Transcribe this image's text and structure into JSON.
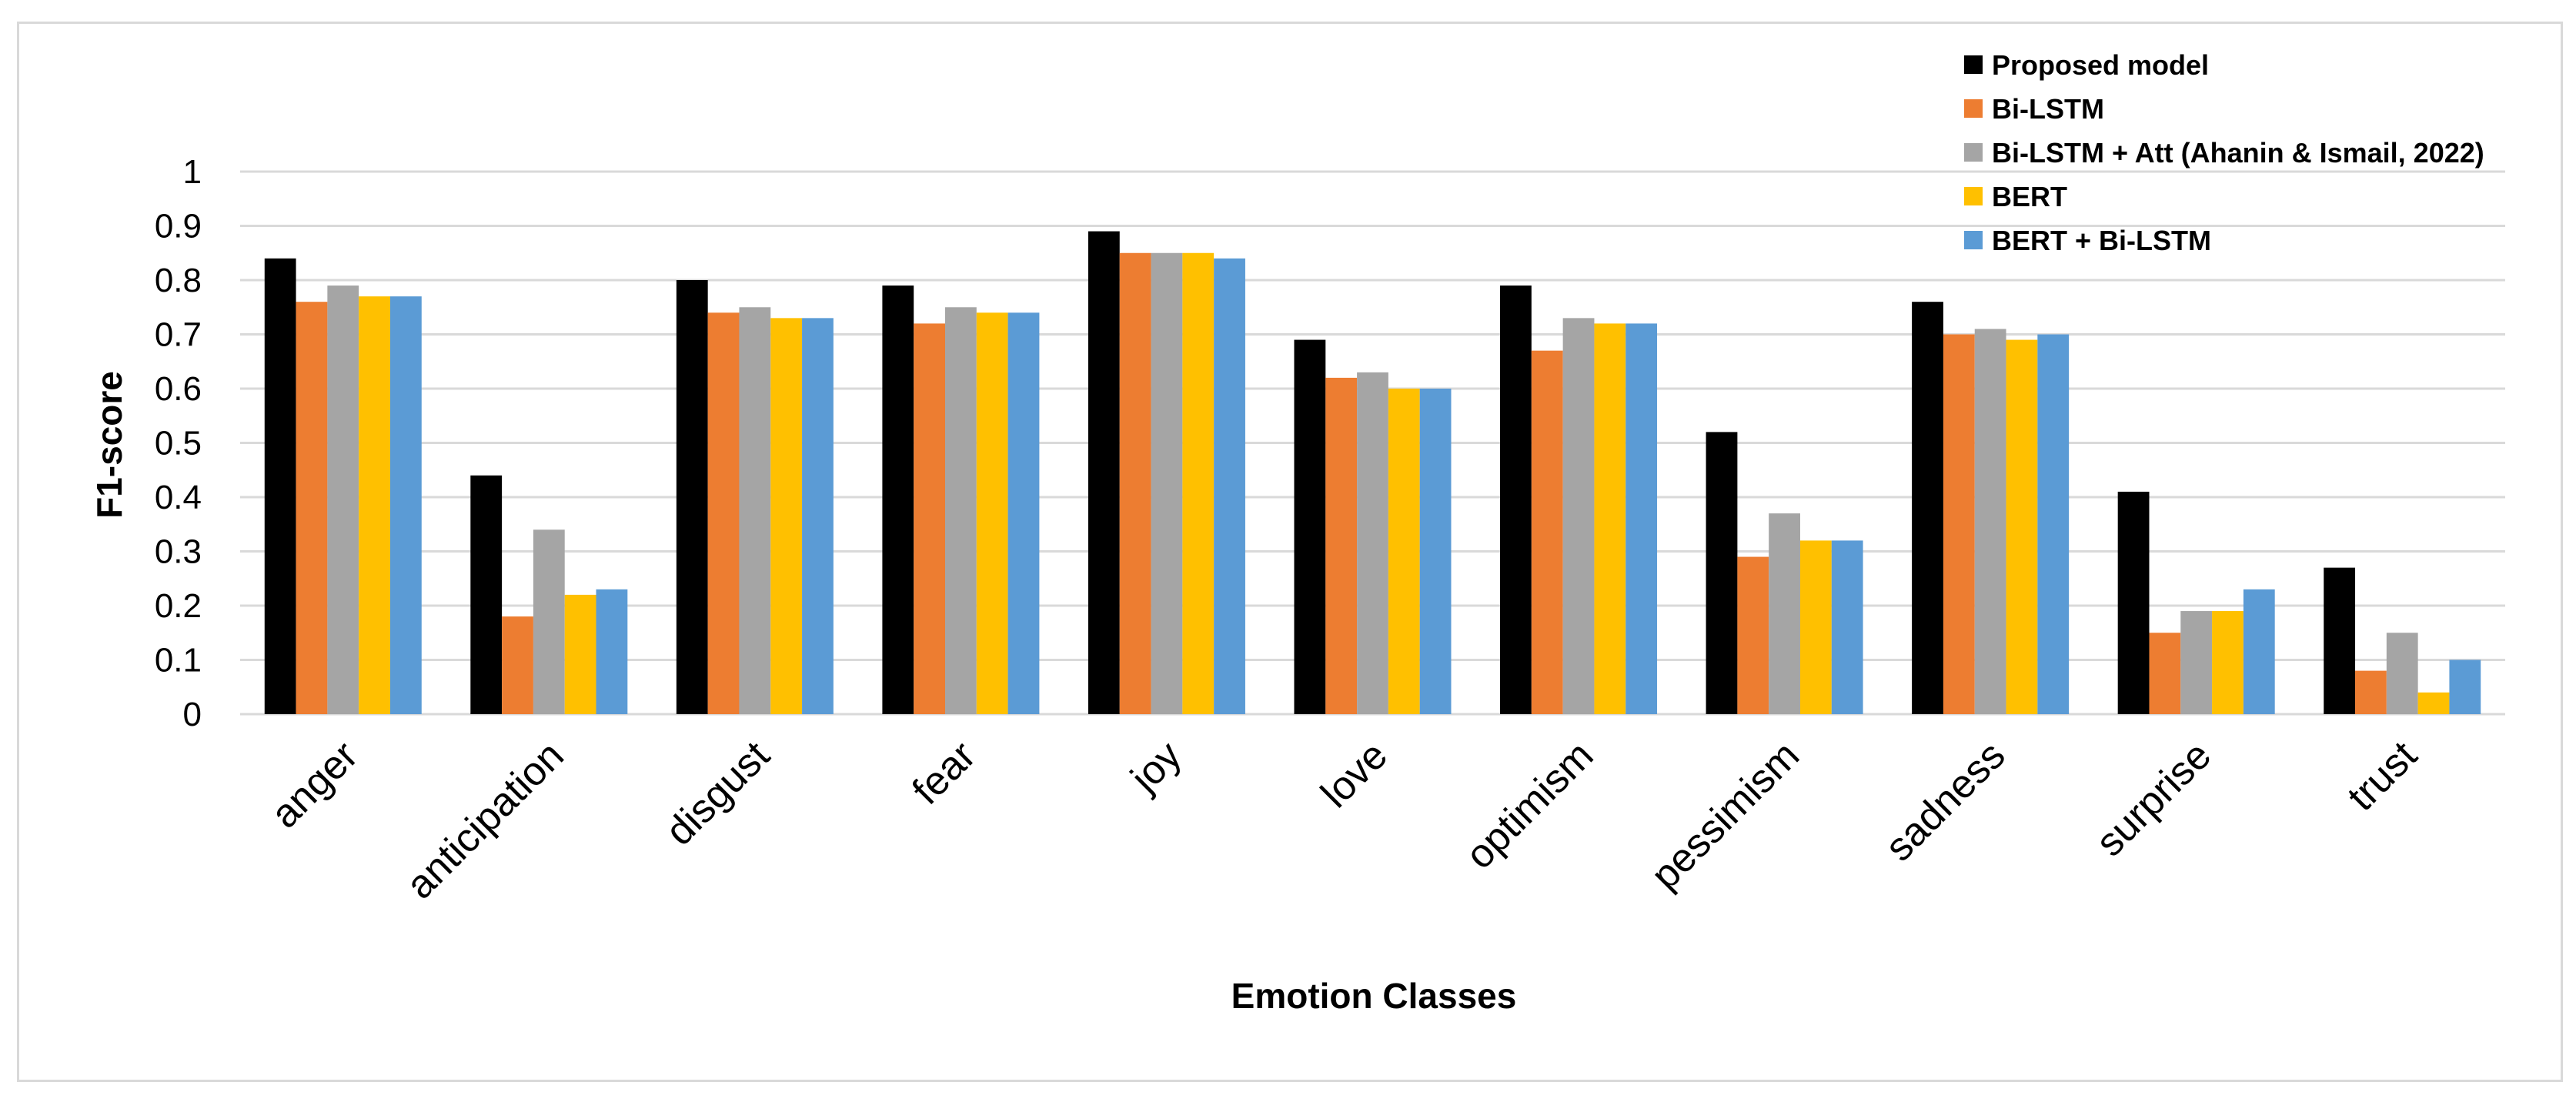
{
  "chart_data": {
    "type": "bar",
    "title": "",
    "xlabel": "Emotion Classes",
    "ylabel": "F1-score",
    "ylim": [
      0,
      1
    ],
    "yticks": [
      "0",
      "0.1",
      "0.2",
      "0.3",
      "0.4",
      "0.5",
      "0.6",
      "0.7",
      "0.8",
      "0.9",
      "1"
    ],
    "grid": true,
    "legend_position": "top-right",
    "categories": [
      "anger",
      "anticipation",
      "disgust",
      "fear",
      "joy",
      "love",
      "optimism",
      "pessimism",
      "sadness",
      "surprise",
      "trust"
    ],
    "series": [
      {
        "name": "Proposed model",
        "color": "#000000",
        "values": [
          0.84,
          0.44,
          0.8,
          0.79,
          0.89,
          0.69,
          0.79,
          0.52,
          0.76,
          0.41,
          0.27
        ]
      },
      {
        "name": "Bi-LSTM",
        "color": "#ED7D31",
        "values": [
          0.76,
          0.18,
          0.74,
          0.72,
          0.85,
          0.62,
          0.67,
          0.29,
          0.7,
          0.15,
          0.08
        ]
      },
      {
        "name": "Bi-LSTM + Att (Ahanin & Ismail, 2022)",
        "color": "#A5A5A5",
        "values": [
          0.79,
          0.34,
          0.75,
          0.75,
          0.85,
          0.63,
          0.73,
          0.37,
          0.71,
          0.19,
          0.15
        ]
      },
      {
        "name": "BERT",
        "color": "#FFC000",
        "values": [
          0.77,
          0.22,
          0.73,
          0.74,
          0.85,
          0.6,
          0.72,
          0.32,
          0.69,
          0.19,
          0.04
        ]
      },
      {
        "name": "BERT + Bi-LSTM",
        "color": "#5B9BD5",
        "values": [
          0.77,
          0.23,
          0.73,
          0.74,
          0.84,
          0.6,
          0.72,
          0.32,
          0.7,
          0.23,
          0.1
        ]
      }
    ]
  }
}
